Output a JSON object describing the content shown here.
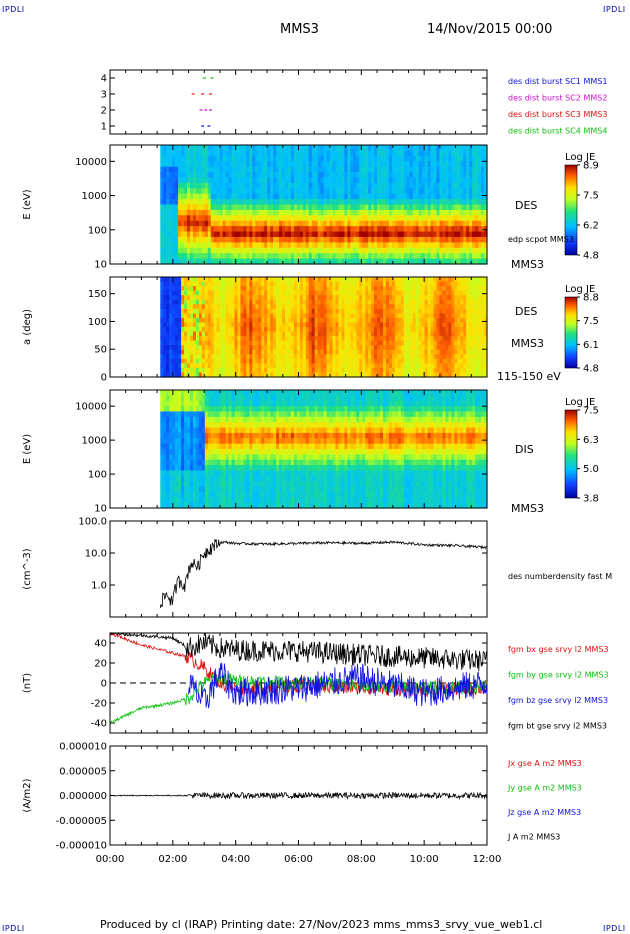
{
  "header": {
    "corner_label": "IPDLI",
    "spacecraft": "MMS3",
    "datetime": "14/Nov/2015 00:00"
  },
  "footer": {
    "text": "Produced by cl (IRAP)   Printing date: 27/Nov/2023   mms_mms3_srvy_vue_web1.cl"
  },
  "colors": {
    "black": "#000000",
    "red": "#e01010",
    "green": "#10c010",
    "blue": "#1010e0",
    "magenta": "#d010d0"
  },
  "time_axis": {
    "ticks": [
      "00:00",
      "02:00",
      "04:00",
      "06:00",
      "08:00",
      "10:00",
      "12:00"
    ]
  },
  "chart_data": [
    {
      "type": "scatter",
      "id": "burst",
      "ylim": [
        0.5,
        4.5
      ],
      "yticks": [
        "1",
        "2",
        "3",
        "4"
      ],
      "legend": [
        {
          "label": "des dist burst SC1 MMS1",
          "color": "#1010e0"
        },
        {
          "label": "des dist burst SC2 MMS2",
          "color": "#d010d0"
        },
        {
          "label": "des dist burst SC3 MMS3",
          "color": "#e01010"
        },
        {
          "label": "des dist burst SC4 MMS4",
          "color": "#10c010"
        }
      ],
      "series": [
        {
          "y": 1,
          "color": "#1010e0",
          "t": [
            2.9,
            3.1
          ]
        },
        {
          "y": 2,
          "color": "#d010d0",
          "t": [
            2.85,
            3.0,
            3.15
          ]
        },
        {
          "y": 3,
          "color": "#e01010",
          "t": [
            2.6,
            2.9,
            3.15
          ]
        },
        {
          "y": 4,
          "color": "#10c010",
          "t": [
            2.95,
            3.2
          ]
        }
      ]
    },
    {
      "type": "heatmap",
      "id": "des_energy",
      "ylabel": "E (eV)",
      "log_y": true,
      "ylim": [
        10,
        30000
      ],
      "yticks": [
        "10",
        "100",
        "1000",
        "10000"
      ],
      "right_labels": [
        "DES",
        "edp scpot MMS3",
        "MMS3"
      ],
      "colorbar": {
        "title": "Log JE",
        "ticks": [
          "8.9",
          "7.5",
          "6.2",
          "4.8"
        ]
      },
      "data_start_hour": 1.6,
      "peak_energy_ev": 80
    },
    {
      "type": "heatmap",
      "id": "des_pitch",
      "ylabel": "a (deg)",
      "ylim": [
        0,
        180
      ],
      "yticks": [
        "0",
        "50",
        "100",
        "150"
      ],
      "right_labels": [
        "DES",
        "MMS3",
        "115-150 eV"
      ],
      "colorbar": {
        "title": "Log JE",
        "ticks": [
          "8.8",
          "7.5",
          "6.1",
          "4.8"
        ]
      },
      "data_start_hour": 1.6
    },
    {
      "type": "heatmap",
      "id": "dis_energy",
      "ylabel": "E (eV)",
      "log_y": true,
      "ylim": [
        10,
        30000
      ],
      "yticks": [
        "10",
        "100",
        "1000",
        "10000"
      ],
      "right_labels": [
        "DIS",
        "MMS3"
      ],
      "colorbar": {
        "title": "Log JE",
        "ticks": [
          "7.5",
          "6.3",
          "5.0",
          "3.8"
        ]
      },
      "data_start_hour": 1.6,
      "peak_energy_ev": 1200
    },
    {
      "type": "line",
      "id": "density",
      "ylabel": "(cm^-3)",
      "log_y": true,
      "ylim": [
        0.1,
        100
      ],
      "yticks": [
        "1.0",
        "10.0",
        "100.0"
      ],
      "legend": [
        {
          "label": "des numberdensity fast M",
          "color": "#000000"
        }
      ],
      "series": [
        {
          "name": "des numberdensity fast M",
          "color": "#000000",
          "t": [
            1.6,
            1.8,
            2.0,
            2.2,
            2.4,
            2.6,
            2.8,
            3.0,
            3.3,
            3.6,
            4.0,
            5.0,
            6.0,
            7.0,
            8.0,
            9.0,
            10.0,
            11.0,
            12.0
          ],
          "v": [
            0.3,
            0.5,
            0.3,
            1.5,
            1.0,
            5,
            4,
            10,
            18,
            22,
            20,
            19,
            20,
            21,
            20,
            22,
            18,
            17,
            15
          ]
        }
      ]
    },
    {
      "type": "line",
      "id": "fgm",
      "ylabel": "(nT)",
      "ylim": [
        -50,
        50
      ],
      "yticks": [
        "-40",
        "-20",
        "0",
        "20",
        "40"
      ],
      "legend": [
        {
          "label": "fgm bx gse srvy l2 MMS3",
          "color": "#e01010"
        },
        {
          "label": "fgm by gse srvy l2 MMS3",
          "color": "#10c010"
        },
        {
          "label": "fgm bz gse srvy l2 MMS3",
          "color": "#1010e0"
        },
        {
          "label": "fgm bt gse srvy l2 MMS3",
          "color": "#000000"
        }
      ],
      "series": [
        {
          "name": "fgm bx gse srvy l2 MMS3",
          "color": "#e01010",
          "t": [
            0,
            1,
            2,
            2.5,
            3,
            3.5,
            4,
            6,
            8,
            10,
            12
          ],
          "v": [
            50,
            38,
            30,
            26,
            15,
            0,
            -5,
            -3,
            -5,
            -7,
            -5
          ]
        },
        {
          "name": "fgm by gse srvy l2 MMS3",
          "color": "#10c010",
          "t": [
            0,
            1,
            2,
            2.5,
            3,
            3.5,
            4,
            6,
            8,
            10,
            12
          ],
          "v": [
            -40,
            -25,
            -20,
            -15,
            0,
            5,
            2,
            0,
            -3,
            -5,
            -3
          ]
        },
        {
          "name": "fgm bz gse srvy l2 MMS3",
          "color": "#1010e0",
          "t": [
            2.5,
            3,
            3.5,
            4,
            6,
            8,
            10,
            12
          ],
          "v": [
            0,
            -20,
            10,
            -10,
            -5,
            5,
            -10,
            0
          ]
        },
        {
          "name": "fgm bt gse srvy l2 MMS3",
          "color": "#000000",
          "t": [
            0,
            2,
            2.5,
            3,
            3.5,
            4,
            6,
            8,
            10,
            12
          ],
          "v": [
            50,
            45,
            35,
            40,
            35,
            33,
            32,
            28,
            25,
            22
          ]
        }
      ]
    },
    {
      "type": "line",
      "id": "current",
      "ylabel": "(A/m2)",
      "ylim": [
        -1e-05,
        1e-05
      ],
      "yticks": [
        "-0.000010",
        "-0.000005",
        "0.000000",
        "0.000005",
        "0.000010"
      ],
      "legend": [
        {
          "label": "Jx gse A m2 MMS3",
          "color": "#e01010"
        },
        {
          "label": "Jy gse A m2 MMS3",
          "color": "#10c010"
        },
        {
          "label": "Jz gse A m2 MMS3",
          "color": "#1010e0"
        },
        {
          "label": "J A m2 MMS3",
          "color": "#000000"
        }
      ],
      "series": [
        {
          "name": "J A m2 MMS3",
          "color": "#000000",
          "t": [
            0,
            12
          ],
          "v": [
            0,
            0
          ]
        }
      ]
    }
  ]
}
